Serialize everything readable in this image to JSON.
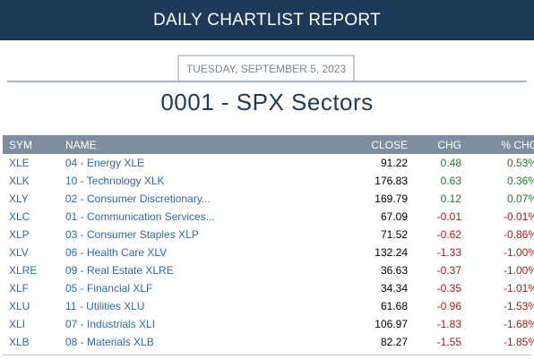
{
  "banner": {
    "title": "DAILY CHARTLIST REPORT"
  },
  "report": {
    "date": "TUESDAY, SEPTEMBER 5, 2023",
    "title": "0001 - SPX Sectors"
  },
  "table": {
    "headers": {
      "sym": "SYM",
      "name": "NAME",
      "close": "CLOSE",
      "chg": "CHG",
      "pct": "% CHG"
    },
    "colors": {
      "positive": "#1c7a2c",
      "negative": "#a31a1a",
      "link": "#2f6aa4"
    },
    "rows": [
      {
        "sym": "XLE",
        "name": "04 - Energy XLE",
        "close": "91.22",
        "chg": "0.48",
        "pct": "0.53%",
        "dir": "pos"
      },
      {
        "sym": "XLK",
        "name": "10 - Technology XLK",
        "close": "176.83",
        "chg": "0.63",
        "pct": "0.36%",
        "dir": "pos"
      },
      {
        "sym": "XLY",
        "name": "02 - Consumer Discretionary...",
        "close": "169.79",
        "chg": "0.12",
        "pct": "0.07%",
        "dir": "pos"
      },
      {
        "sym": "XLC",
        "name": "01 - Communication Services...",
        "close": "67.09",
        "chg": "-0.01",
        "pct": "-0.01%",
        "dir": "neg"
      },
      {
        "sym": "XLP",
        "name": "03 - Consumer Staples XLP",
        "close": "71.52",
        "chg": "-0.62",
        "pct": "-0.86%",
        "dir": "neg"
      },
      {
        "sym": "XLV",
        "name": "06 - Health Care XLV",
        "close": "132.24",
        "chg": "-1.33",
        "pct": "-1.00%",
        "dir": "neg"
      },
      {
        "sym": "XLRE",
        "name": "09 - Real Estate XLRE",
        "close": "36.63",
        "chg": "-0.37",
        "pct": "-1.00%",
        "dir": "neg"
      },
      {
        "sym": "XLF",
        "name": "05 - Financial XLF",
        "close": "34.34",
        "chg": "-0.35",
        "pct": "-1.01%",
        "dir": "neg"
      },
      {
        "sym": "XLU",
        "name": "11 - Utilities XLU",
        "close": "61.68",
        "chg": "-0.96",
        "pct": "-1.53%",
        "dir": "neg"
      },
      {
        "sym": "XLI",
        "name": "07 - Industrials XLI",
        "close": "106.97",
        "chg": "-1.83",
        "pct": "-1.68%",
        "dir": "neg"
      },
      {
        "sym": "XLB",
        "name": "08 - Materials XLB",
        "close": "82.27",
        "chg": "-1.55",
        "pct": "-1.85%",
        "dir": "neg"
      }
    ]
  }
}
